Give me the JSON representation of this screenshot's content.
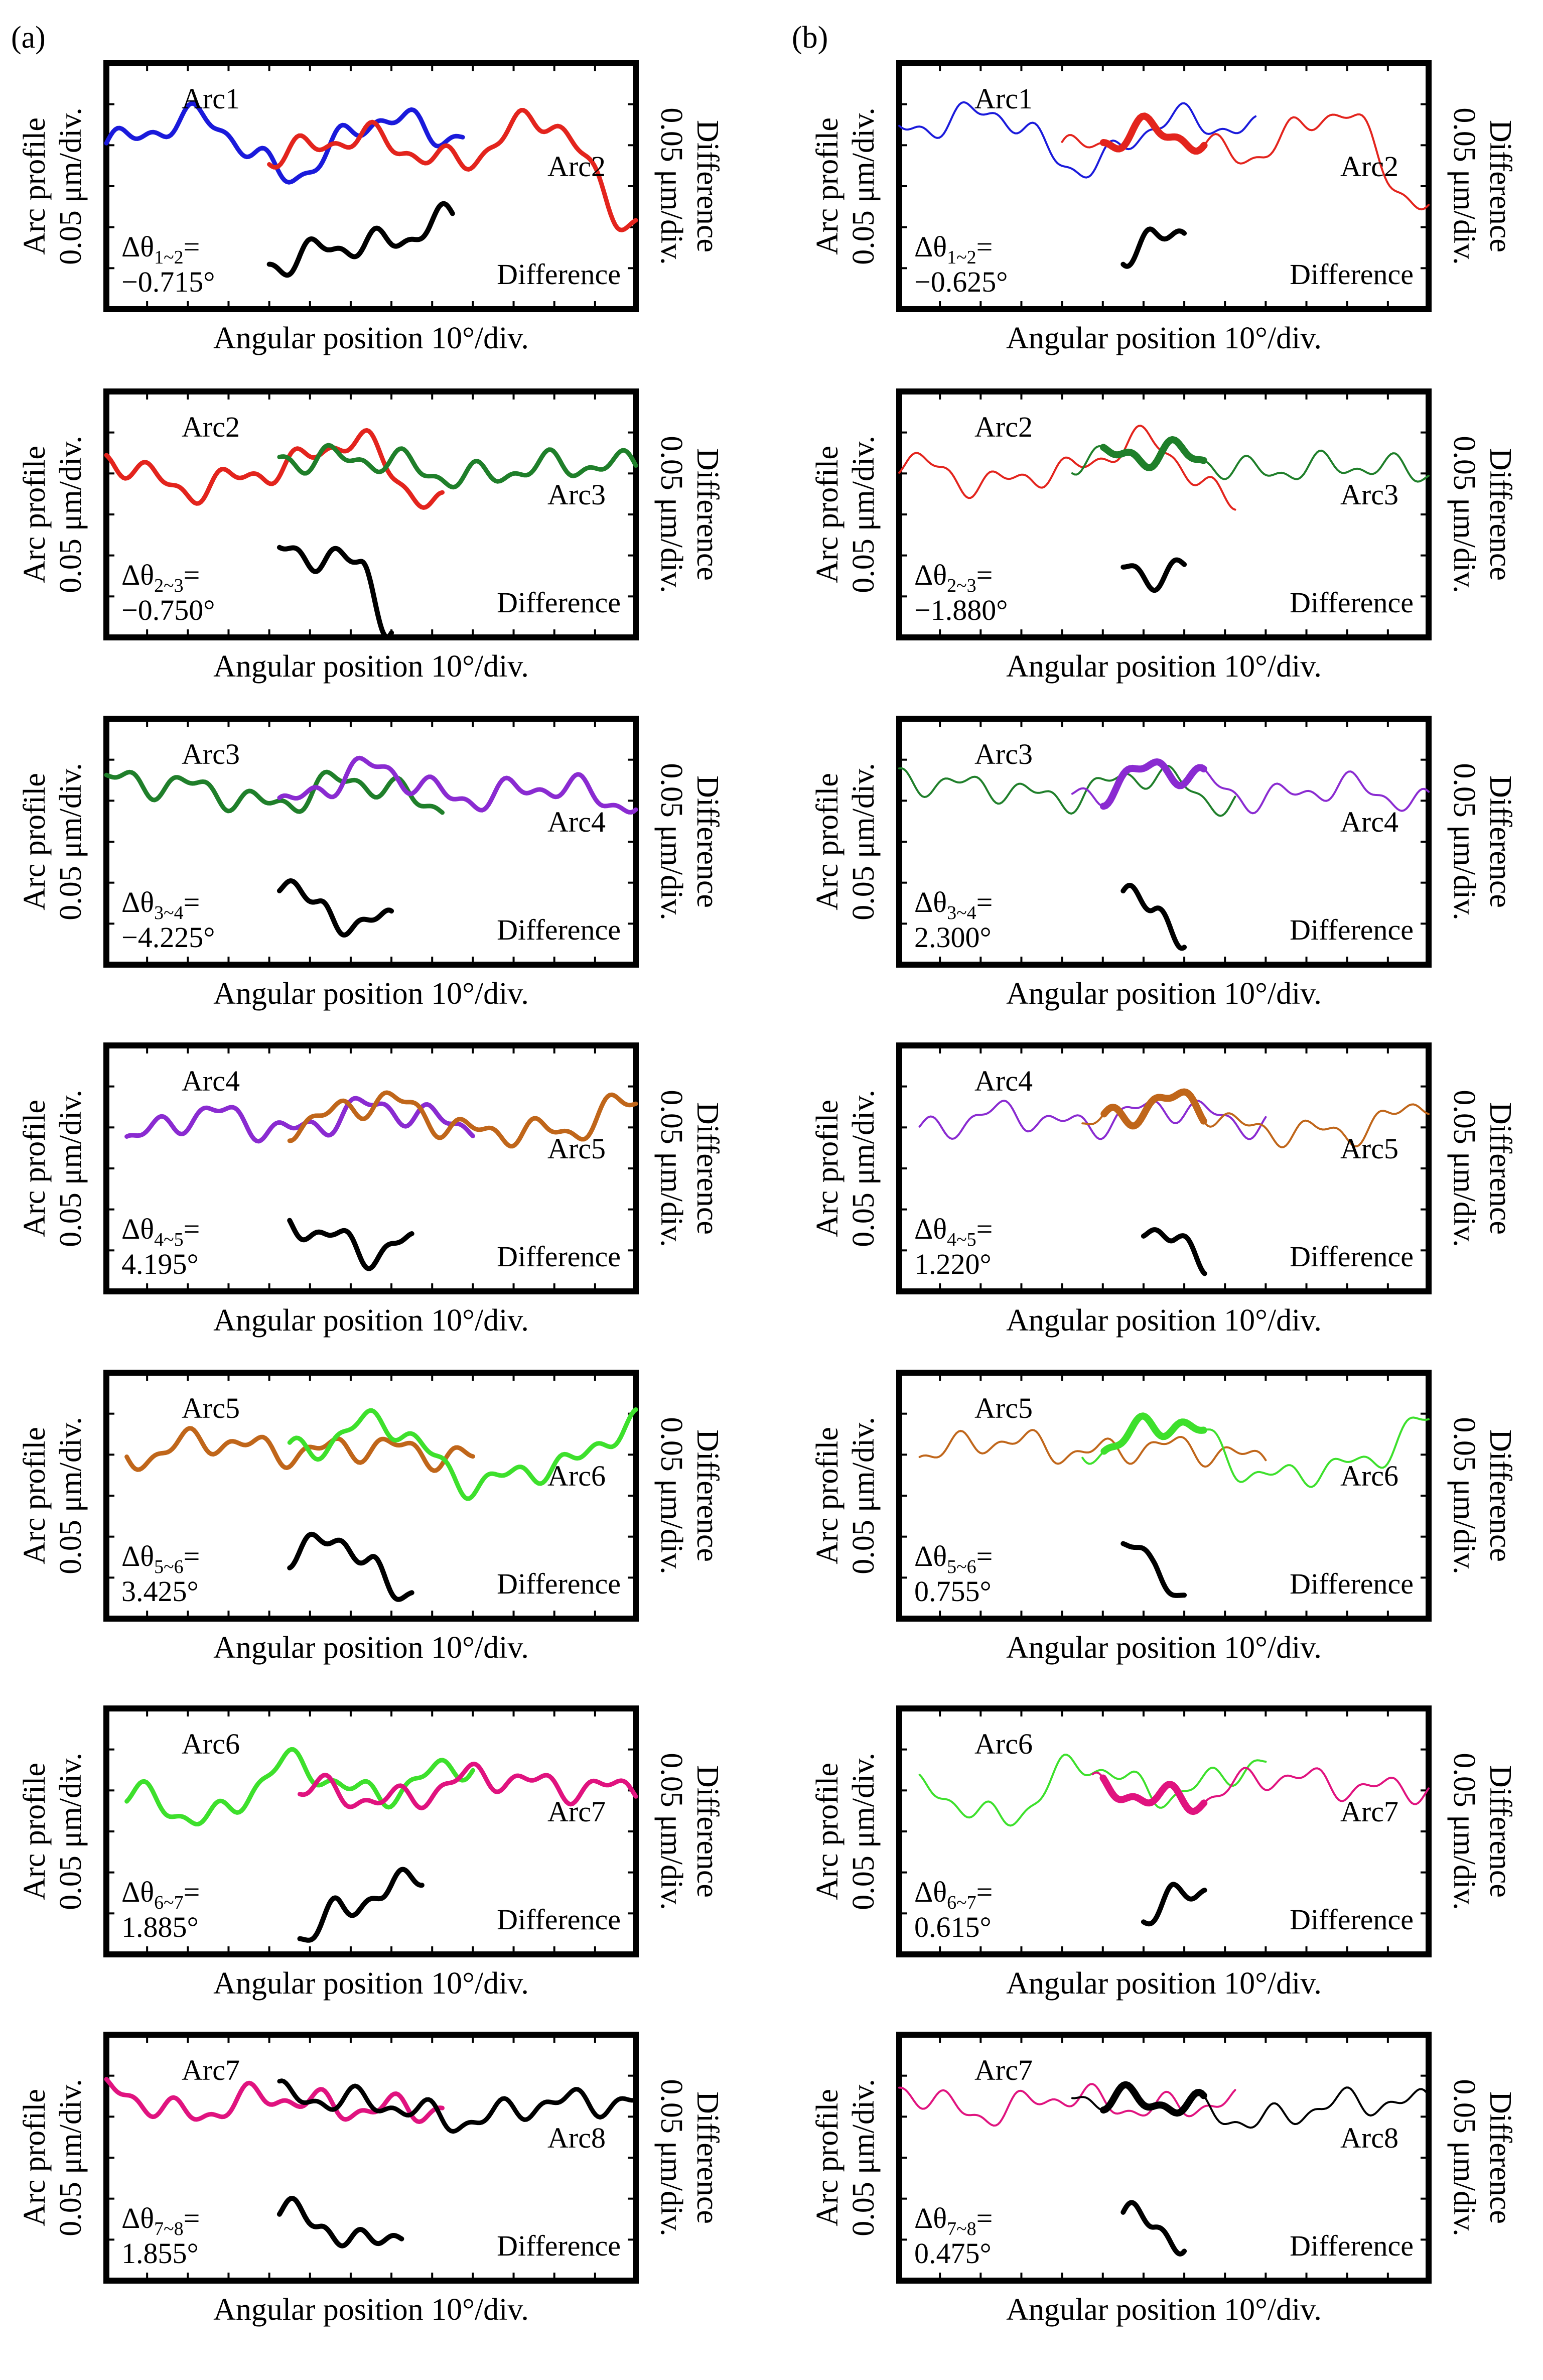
{
  "figure": {
    "xlabel": "Angular position 10°/div.",
    "ylabel_line1": "Arc profile",
    "ylabel_line2": "0.05 μm/div.",
    "y2label_line1": "Difference",
    "y2label_line2": "0.05 μm/div.",
    "diff_label": "Difference",
    "delta_symbol": "Δθ",
    "panel_labels": [
      "(a)",
      "(b)"
    ],
    "colors": {
      "Arc1": "#1a1adb",
      "Arc2": "#e3241d",
      "Arc3": "#1f7f2a",
      "Arc4": "#8a2bd1",
      "Arc5": "#c0661a",
      "Arc6": "#3de02c",
      "Arc7": "#e0137f",
      "Arc8": "#000000",
      "difference": "#000000"
    }
  },
  "chart_data": [
    {
      "type": "line",
      "column": "a",
      "pair": "1~2",
      "arc_left": "Arc1",
      "arc_right": "Arc2",
      "delta_sub": "1~2",
      "delta_value": "−0.715°",
      "title": "",
      "ylim": [
        -1,
        1
      ],
      "series": [
        {
          "name": "Arc1",
          "x": [
            0,
            9,
            18,
            27,
            35
          ],
          "y": [
            0.35,
            0.55,
            0.1,
            0.55,
            0.4
          ]
        },
        {
          "name": "Arc2",
          "x": [
            16,
            25,
            34,
            43,
            52
          ],
          "y": [
            0.25,
            0.4,
            0.2,
            0.55,
            -0.3
          ]
        },
        {
          "name": "Difference",
          "x": [
            16,
            22,
            28,
            34
          ],
          "y": [
            -0.65,
            -0.5,
            -0.45,
            -0.25
          ]
        }
      ]
    },
    {
      "type": "line",
      "column": "b",
      "pair": "1~2",
      "arc_left": "Arc1",
      "arc_right": "Arc2",
      "delta_sub": "1~2",
      "delta_value": "−0.625°",
      "title": "",
      "ylim": [
        -1,
        1
      ],
      "series": [
        {
          "name": "Arc1",
          "x": [
            0,
            9,
            18,
            27,
            35
          ],
          "y": [
            0.45,
            0.6,
            0.15,
            0.55,
            0.45
          ]
        },
        {
          "name": "Arc2",
          "x": [
            16,
            25,
            34,
            43,
            52
          ],
          "y": [
            0.3,
            0.45,
            0.25,
            0.6,
            -0.2
          ]
        },
        {
          "name": "Difference",
          "x": [
            22,
            25,
            28
          ],
          "y": [
            -0.55,
            -0.45,
            -0.35
          ]
        }
      ]
    },
    {
      "type": "line",
      "column": "a",
      "pair": "2~3",
      "arc_left": "Arc2",
      "arc_right": "Arc3",
      "delta_sub": "2~3",
      "delta_value": "−0.750°",
      "title": "",
      "ylim": [
        -1,
        1
      ],
      "series": [
        {
          "name": "Arc2",
          "x": [
            0,
            8,
            16,
            24,
            33
          ],
          "y": [
            0.45,
            0.2,
            0.35,
            0.6,
            0.05
          ]
        },
        {
          "name": "Arc3",
          "x": [
            17,
            26,
            35,
            44,
            52
          ],
          "y": [
            0.45,
            0.45,
            0.3,
            0.4,
            0.4
          ]
        },
        {
          "name": "Difference",
          "x": [
            17,
            21,
            25,
            28
          ],
          "y": [
            -0.3,
            -0.35,
            -0.4,
            -0.95
          ]
        }
      ]
    },
    {
      "type": "line",
      "column": "b",
      "pair": "2~3",
      "arc_left": "Arc2",
      "arc_right": "Arc3",
      "delta_sub": "2~3",
      "delta_value": "−1.880°",
      "title": "",
      "ylim": [
        -1,
        1
      ],
      "series": [
        {
          "name": "Arc2",
          "x": [
            0,
            8,
            16,
            24,
            33
          ],
          "y": [
            0.45,
            0.25,
            0.35,
            0.6,
            0.1
          ]
        },
        {
          "name": "Arc3",
          "x": [
            17,
            26,
            35,
            44,
            52
          ],
          "y": [
            0.45,
            0.5,
            0.35,
            0.4,
            0.35
          ]
        },
        {
          "name": "Difference",
          "x": [
            22,
            25,
            28
          ],
          "y": [
            -0.45,
            -0.5,
            -0.45
          ]
        }
      ]
    },
    {
      "type": "line",
      "column": "a",
      "pair": "3~4",
      "arc_left": "Arc3",
      "arc_right": "Arc4",
      "delta_sub": "3~4",
      "delta_value": "−4.225°",
      "title": "",
      "ylim": [
        -1,
        1
      ],
      "series": [
        {
          "name": "Arc3",
          "x": [
            0,
            8,
            16,
            24,
            33
          ],
          "y": [
            0.5,
            0.45,
            0.3,
            0.5,
            0.3
          ]
        },
        {
          "name": "Arc4",
          "x": [
            17,
            26,
            35,
            44,
            52
          ],
          "y": [
            0.3,
            0.6,
            0.35,
            0.45,
            0.3
          ]
        },
        {
          "name": "Difference",
          "x": [
            17,
            21,
            25,
            28
          ],
          "y": [
            -0.3,
            -0.55,
            -0.7,
            -0.6
          ]
        }
      ]
    },
    {
      "type": "line",
      "column": "b",
      "pair": "3~4",
      "arc_left": "Arc3",
      "arc_right": "Arc4",
      "delta_sub": "3~4",
      "delta_value": "2.300°",
      "title": "",
      "ylim": [
        -1,
        1
      ],
      "series": [
        {
          "name": "Arc3",
          "x": [
            0,
            8,
            16,
            24,
            33
          ],
          "y": [
            0.5,
            0.45,
            0.35,
            0.55,
            0.3
          ]
        },
        {
          "name": "Arc4",
          "x": [
            17,
            26,
            35,
            44,
            52
          ],
          "y": [
            0.35,
            0.6,
            0.35,
            0.45,
            0.3
          ]
        },
        {
          "name": "Difference",
          "x": [
            22,
            25,
            28
          ],
          "y": [
            -0.35,
            -0.6,
            -0.75
          ]
        }
      ]
    },
    {
      "type": "line",
      "column": "a",
      "pair": "4~5",
      "arc_left": "Arc4",
      "arc_right": "Arc5",
      "delta_sub": "4~5",
      "delta_value": "4.195°",
      "title": "",
      "ylim": [
        -1,
        1
      ],
      "series": [
        {
          "name": "Arc4",
          "x": [
            2,
            10,
            18,
            26,
            36
          ],
          "y": [
            0.25,
            0.45,
            0.3,
            0.5,
            0.35
          ]
        },
        {
          "name": "Arc5",
          "x": [
            18,
            27,
            36,
            45,
            52
          ],
          "y": [
            0.35,
            0.55,
            0.3,
            0.3,
            0.55
          ]
        },
        {
          "name": "Difference",
          "x": [
            18,
            22,
            26,
            30
          ],
          "y": [
            -0.45,
            -0.55,
            -0.7,
            -0.6
          ]
        }
      ]
    },
    {
      "type": "line",
      "column": "b",
      "pair": "4~5",
      "arc_left": "Arc4",
      "arc_right": "Arc5",
      "delta_sub": "4~5",
      "delta_value": "1.220°",
      "title": "",
      "ylim": [
        -1,
        1
      ],
      "series": [
        {
          "name": "Arc4",
          "x": [
            2,
            10,
            18,
            26,
            36
          ],
          "y": [
            0.3,
            0.45,
            0.35,
            0.5,
            0.35
          ]
        },
        {
          "name": "Arc5",
          "x": [
            18,
            27,
            36,
            45,
            52
          ],
          "y": [
            0.35,
            0.55,
            0.3,
            0.3,
            0.55
          ]
        },
        {
          "name": "Difference",
          "x": [
            24,
            27,
            30
          ],
          "y": [
            -0.45,
            -0.6,
            -0.75
          ]
        }
      ]
    },
    {
      "type": "line",
      "column": "a",
      "pair": "5~6",
      "arc_left": "Arc5",
      "arc_right": "Arc6",
      "delta_sub": "5~6",
      "delta_value": "3.425°",
      "title": "",
      "ylim": [
        -1,
        1
      ],
      "series": [
        {
          "name": "Arc5",
          "x": [
            2,
            10,
            18,
            26,
            36
          ],
          "y": [
            0.3,
            0.45,
            0.35,
            0.4,
            0.3
          ]
        },
        {
          "name": "Arc6",
          "x": [
            18,
            27,
            36,
            45,
            52
          ],
          "y": [
            0.35,
            0.6,
            0.1,
            0.25,
            0.6
          ]
        },
        {
          "name": "Difference",
          "x": [
            18,
            22,
            26,
            30
          ],
          "y": [
            -0.55,
            -0.3,
            -0.6,
            -0.8
          ]
        }
      ]
    },
    {
      "type": "line",
      "column": "b",
      "pair": "5~6",
      "arc_left": "Arc5",
      "arc_right": "Arc6",
      "delta_sub": "5~6",
      "delta_value": "0.755°",
      "title": "",
      "ylim": [
        -1,
        1
      ],
      "series": [
        {
          "name": "Arc5",
          "x": [
            2,
            10,
            18,
            26,
            36
          ],
          "y": [
            0.35,
            0.45,
            0.35,
            0.4,
            0.3
          ]
        },
        {
          "name": "Arc6",
          "x": [
            18,
            27,
            36,
            45,
            52
          ],
          "y": [
            0.35,
            0.6,
            0.15,
            0.25,
            0.6
          ]
        },
        {
          "name": "Difference",
          "x": [
            22,
            25,
            28
          ],
          "y": [
            -0.35,
            -0.6,
            -0.8
          ]
        }
      ]
    },
    {
      "type": "line",
      "column": "a",
      "pair": "6~7",
      "arc_left": "Arc6",
      "arc_right": "Arc7",
      "delta_sub": "6~7",
      "delta_value": "1.885°",
      "title": "",
      "ylim": [
        -1,
        1
      ],
      "series": [
        {
          "name": "Arc6",
          "x": [
            2,
            10,
            18,
            26,
            36
          ],
          "y": [
            0.3,
            0.1,
            0.55,
            0.3,
            0.55
          ]
        },
        {
          "name": "Arc7",
          "x": [
            19,
            28,
            37,
            46,
            52
          ],
          "y": [
            0.35,
            0.25,
            0.45,
            0.35,
            0.35
          ]
        },
        {
          "name": "Difference",
          "x": [
            19,
            23,
            27,
            31
          ],
          "y": [
            -0.85,
            -0.65,
            -0.5,
            -0.35
          ]
        }
      ]
    },
    {
      "type": "line",
      "column": "b",
      "pair": "6~7",
      "arc_left": "Arc6",
      "arc_right": "Arc7",
      "delta_sub": "6~7",
      "delta_value": "0.615°",
      "title": "",
      "ylim": [
        -1,
        1
      ],
      "series": [
        {
          "name": "Arc6",
          "x": [
            2,
            10,
            18,
            26,
            36
          ],
          "y": [
            0.35,
            0.1,
            0.55,
            0.3,
            0.55
          ]
        },
        {
          "name": "Arc7",
          "x": [
            19,
            28,
            37,
            46,
            52
          ],
          "y": [
            0.35,
            0.25,
            0.45,
            0.35,
            0.35
          ]
        },
        {
          "name": "Difference",
          "x": [
            24,
            27,
            30
          ],
          "y": [
            -0.7,
            -0.55,
            -0.45
          ]
        }
      ]
    },
    {
      "type": "line",
      "column": "a",
      "pair": "7~8",
      "arc_left": "Arc7",
      "arc_right": "Arc8",
      "delta_sub": "7~8",
      "delta_value": "1.855°",
      "title": "",
      "ylim": [
        -1,
        1
      ],
      "series": [
        {
          "name": "Arc7",
          "x": [
            0,
            8,
            16,
            24,
            33
          ],
          "y": [
            0.55,
            0.35,
            0.5,
            0.4,
            0.4
          ]
        },
        {
          "name": "Arc8",
          "x": [
            17,
            26,
            35,
            44,
            52
          ],
          "y": [
            0.5,
            0.45,
            0.3,
            0.45,
            0.45
          ]
        },
        {
          "name": "Difference",
          "x": [
            17,
            21,
            25,
            29
          ],
          "y": [
            -0.4,
            -0.55,
            -0.7,
            -0.6
          ]
        }
      ]
    },
    {
      "type": "line",
      "column": "b",
      "pair": "7~8",
      "arc_left": "Arc7",
      "arc_right": "Arc8",
      "delta_sub": "7~8",
      "delta_value": "0.475°",
      "title": "",
      "ylim": [
        -1,
        1
      ],
      "series": [
        {
          "name": "Arc7",
          "x": [
            0,
            8,
            16,
            24,
            33
          ],
          "y": [
            0.55,
            0.35,
            0.5,
            0.4,
            0.45
          ]
        },
        {
          "name": "Arc8",
          "x": [
            17,
            26,
            35,
            44,
            52
          ],
          "y": [
            0.5,
            0.45,
            0.3,
            0.45,
            0.45
          ]
        },
        {
          "name": "Difference",
          "x": [
            22,
            25,
            28
          ],
          "y": [
            -0.45,
            -0.55,
            -0.7
          ]
        }
      ]
    }
  ]
}
